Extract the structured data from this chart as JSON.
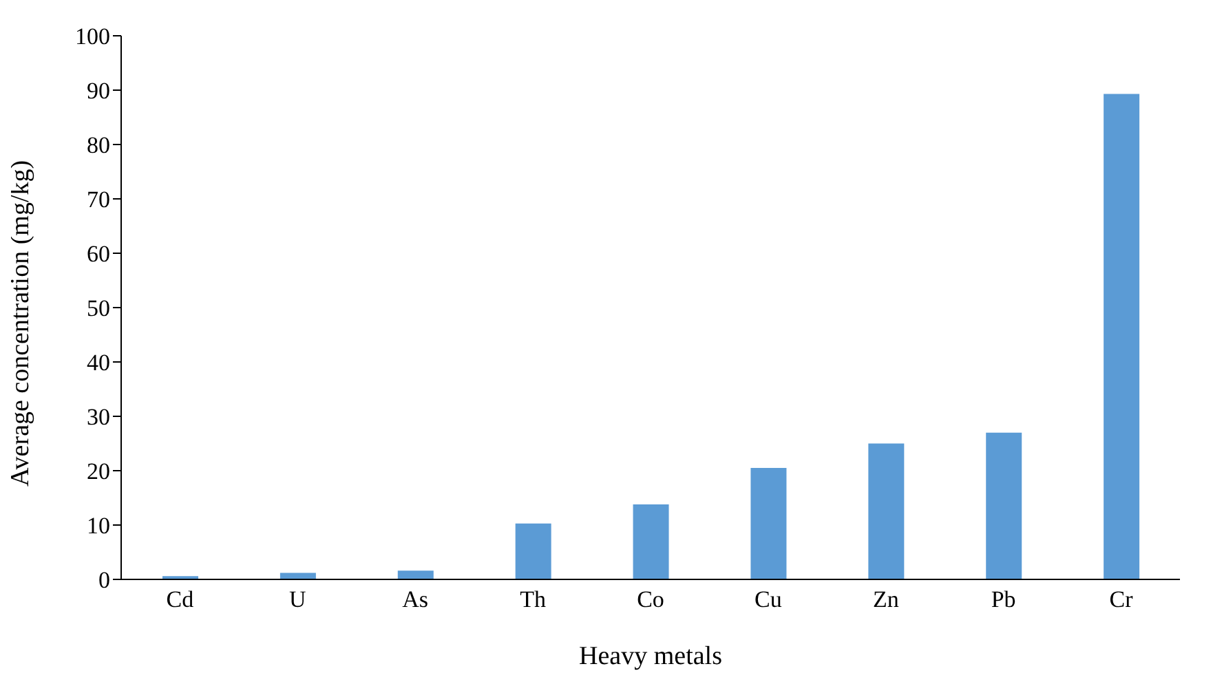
{
  "chart_data": {
    "type": "bar",
    "xlabel": "Heavy metals",
    "ylabel": "Average concentration (mg/kg)",
    "categories": [
      "Cd",
      "U",
      "As",
      "Th",
      "Co",
      "Cu",
      "Zn",
      "Pb",
      "Cr"
    ],
    "values": [
      0.6,
      1.2,
      1.6,
      10.3,
      13.8,
      20.5,
      25.0,
      27.0,
      89.3
    ],
    "color": "#5b9bd5",
    "ylim": [
      0,
      100
    ],
    "yticks": [
      0,
      10,
      20,
      30,
      40,
      50,
      60,
      70,
      80,
      90,
      100
    ],
    "grid": false,
    "legend": false
  }
}
